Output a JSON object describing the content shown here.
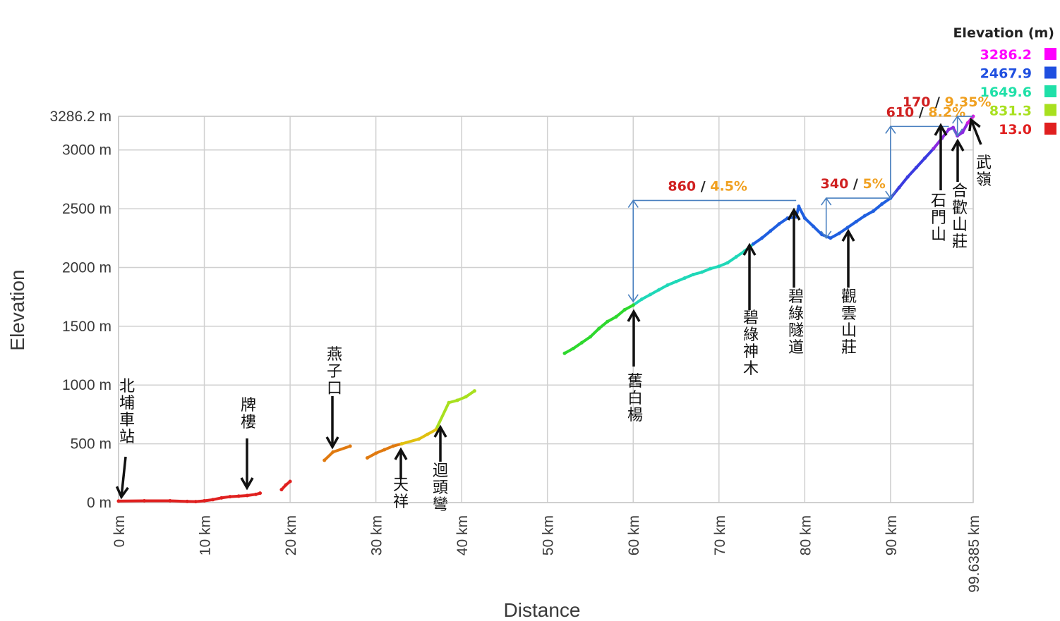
{
  "chart_data": {
    "type": "scatter",
    "xlabel": "Distance",
    "ylabel": "Elevation",
    "xlim": [
      0,
      99.6385
    ],
    "ylim": [
      0,
      3286.2
    ],
    "x_ticks": [
      "0 km",
      "10 km",
      "20 km",
      "30 km",
      "40 km",
      "50 km",
      "60 km",
      "70 km",
      "80 km",
      "90 km",
      "99.6385 km"
    ],
    "y_ticks": [
      "0 m",
      "500 m",
      "1000 m",
      "1500 m",
      "2000 m",
      "2500 m",
      "3000 m",
      "3286.2 m"
    ],
    "legend": {
      "title": "Elevation (m)",
      "position": "top-right",
      "entries": [
        {
          "label": "3286.2",
          "color": "#ff00ff"
        },
        {
          "label": "2467.9",
          "color": "#1f4fe0"
        },
        {
          "label": "1649.6",
          "color": "#1fe0a8"
        },
        {
          "label": "831.3",
          "color": "#a8e01f"
        },
        {
          "label": "13.0",
          "color": "#e01f1f"
        }
      ]
    },
    "profile": [
      [
        0,
        13
      ],
      [
        3,
        15
      ],
      [
        6,
        15
      ],
      [
        8,
        10
      ],
      [
        9,
        8
      ],
      [
        10,
        15
      ],
      [
        11,
        25
      ],
      [
        12,
        40
      ],
      [
        13,
        50
      ],
      [
        14,
        55
      ],
      [
        15,
        60
      ],
      [
        16,
        70
      ],
      [
        16.5,
        80
      ],
      [
        19,
        110
      ],
      [
        19.5,
        150
      ],
      [
        20,
        180
      ],
      [
        24,
        360
      ],
      [
        25,
        430
      ],
      [
        27,
        480
      ],
      [
        29,
        380
      ],
      [
        30,
        420
      ],
      [
        31,
        450
      ],
      [
        32,
        480
      ],
      [
        33,
        500
      ],
      [
        35,
        540
      ],
      [
        36,
        580
      ],
      [
        37,
        620
      ],
      [
        38.5,
        850
      ],
      [
        39.5,
        870
      ],
      [
        40.5,
        900
      ],
      [
        41.5,
        950
      ],
      [
        52,
        1270
      ],
      [
        53,
        1310
      ],
      [
        54,
        1360
      ],
      [
        55,
        1410
      ],
      [
        56,
        1480
      ],
      [
        57,
        1540
      ],
      [
        58,
        1580
      ],
      [
        59,
        1640
      ],
      [
        60,
        1680
      ],
      [
        61,
        1730
      ],
      [
        62,
        1770
      ],
      [
        63,
        1810
      ],
      [
        64,
        1850
      ],
      [
        65,
        1880
      ],
      [
        66,
        1910
      ],
      [
        67,
        1940
      ],
      [
        68,
        1960
      ],
      [
        69,
        1990
      ],
      [
        70,
        2010
      ],
      [
        71,
        2040
      ],
      [
        72,
        2090
      ],
      [
        73,
        2140
      ],
      [
        74,
        2200
      ],
      [
        75,
        2250
      ],
      [
        76,
        2310
      ],
      [
        77,
        2370
      ],
      [
        78,
        2420
      ],
      [
        79,
        2430
      ],
      [
        79.3,
        2520
      ],
      [
        80,
        2420
      ],
      [
        81,
        2350
      ],
      [
        82,
        2280
      ],
      [
        83,
        2250
      ],
      [
        84,
        2290
      ],
      [
        85,
        2340
      ],
      [
        86,
        2390
      ],
      [
        87,
        2440
      ],
      [
        88,
        2480
      ],
      [
        89,
        2540
      ],
      [
        90,
        2590
      ],
      [
        91,
        2680
      ],
      [
        92,
        2770
      ],
      [
        93,
        2850
      ],
      [
        94,
        2930
      ],
      [
        95,
        3010
      ],
      [
        96,
        3100
      ],
      [
        96.8,
        3175
      ],
      [
        97.3,
        3190
      ],
      [
        97.8,
        3120
      ],
      [
        98.4,
        3150
      ],
      [
        99,
        3230
      ],
      [
        99.6385,
        3286.2
      ]
    ],
    "gaps_between": [
      [
        16.5,
        19
      ],
      [
        20,
        24
      ],
      [
        27,
        29
      ],
      [
        41.5,
        52
      ]
    ],
    "annotations": [
      {
        "climb": "860",
        "grade": "4.5%",
        "from_km": 60,
        "to_km": 79,
        "from_m": 1710,
        "to_m": 2570
      },
      {
        "climb": "340",
        "grade": "5%",
        "from_km": 82.5,
        "to_km": 90,
        "from_m": 2250,
        "to_m": 2590
      },
      {
        "climb": "610",
        "grade": "8.2%",
        "from_km": 90,
        "to_km": 96.8,
        "from_m": 2590,
        "to_m": 3200
      },
      {
        "climb": "170",
        "grade": "9.35%",
        "from_km": 97.8,
        "to_km": 99.6,
        "from_m": 3120,
        "to_m": 3286
      }
    ],
    "places": [
      {
        "name": "北埔車站",
        "km": 0.2,
        "m": 20
      },
      {
        "name": "牌樓",
        "km": 15,
        "m": 70
      },
      {
        "name": "燕子口",
        "km": 25,
        "m": 420
      },
      {
        "name": "天祥",
        "km": 32.5,
        "m": 470
      },
      {
        "name": "迴頭彎",
        "km": 37.5,
        "m": 620
      },
      {
        "name": "舊白楊",
        "km": 60,
        "m": 1680
      },
      {
        "name": "碧綠神木",
        "km": 73.5,
        "m": 2180
      },
      {
        "name": "碧綠隧道",
        "km": 79,
        "m": 2450
      },
      {
        "name": "觀雲山莊",
        "km": 85,
        "m": 2310
      },
      {
        "name": "石門山",
        "km": 96.7,
        "m": 3180
      },
      {
        "name": "合歡山莊",
        "km": 98,
        "m": 3140
      },
      {
        "name": "武嶺",
        "km": 99.5,
        "m": 3280
      }
    ]
  }
}
